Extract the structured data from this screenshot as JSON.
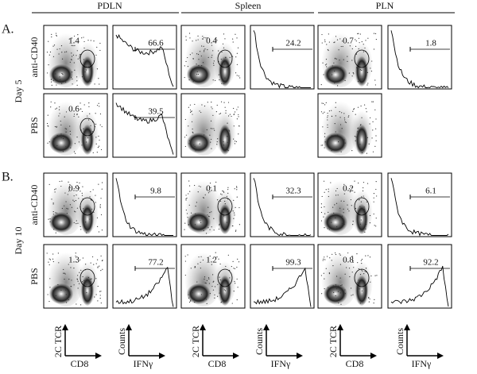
{
  "header": {
    "columns": [
      "PDLN",
      "Spleen",
      "PLN"
    ]
  },
  "sections": [
    {
      "label": "A.",
      "timepoint": "Day 5",
      "rows": [
        {
          "treatment": "anti-CD40",
          "gate": [
            1.4,
            0.4,
            0.7
          ],
          "ifng": [
            66.6,
            24.2,
            1.8
          ]
        },
        {
          "treatment": "PBS",
          "gate": [
            0.6
          ],
          "ifng": [
            39.5
          ]
        }
      ]
    },
    {
      "label": "B.",
      "timepoint": "Day 10",
      "rows": [
        {
          "treatment": "anti-CD40",
          "gate": [
            0.9,
            0.1,
            0.2
          ],
          "ifng": [
            9.8,
            32.3,
            6.1
          ]
        },
        {
          "treatment": "PBS",
          "gate": [
            1.3,
            1.2,
            0.8
          ],
          "ifng": [
            77.2,
            99.3,
            92.2
          ]
        }
      ]
    }
  ],
  "axis_legend": {
    "dot_y": "2C TCR",
    "dot_x": "CD8",
    "hist_y": "Counts",
    "hist_x": "IFNγ"
  }
}
